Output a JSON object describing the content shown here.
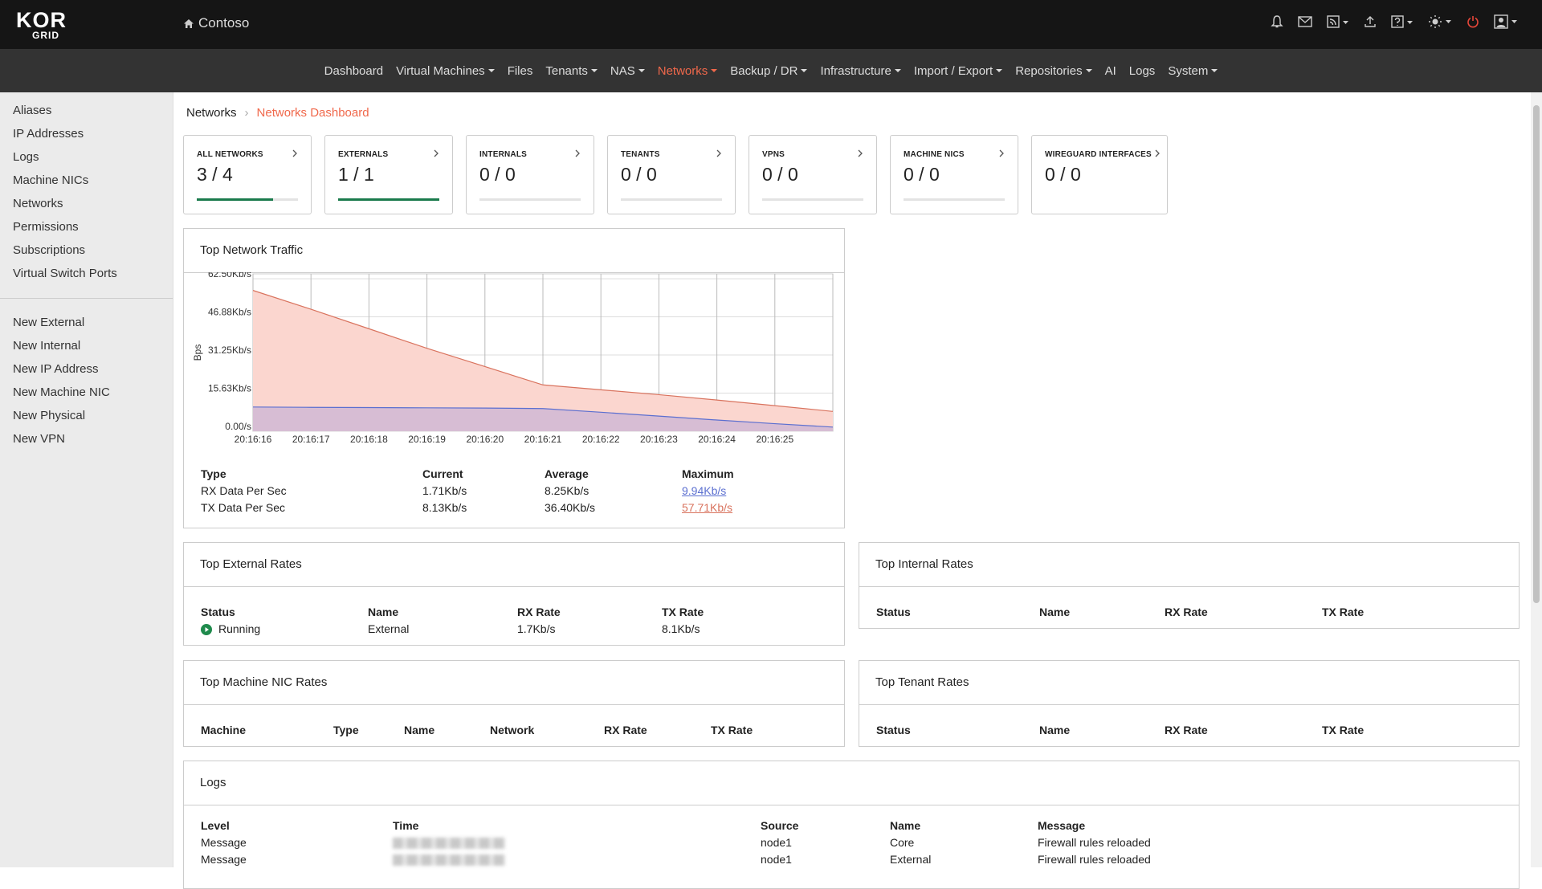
{
  "header": {
    "logo_top": "KOR",
    "logo_bottom": "GRID",
    "brand": "Contoso"
  },
  "nav": {
    "active": 5,
    "items": [
      {
        "label": "Dashboard",
        "dropdown": false
      },
      {
        "label": "Virtual Machines",
        "dropdown": true
      },
      {
        "label": "Files",
        "dropdown": false
      },
      {
        "label": "Tenants",
        "dropdown": true
      },
      {
        "label": "NAS",
        "dropdown": true
      },
      {
        "label": "Networks",
        "dropdown": true
      },
      {
        "label": "Backup / DR",
        "dropdown": true
      },
      {
        "label": "Infrastructure",
        "dropdown": true
      },
      {
        "label": "Import / Export",
        "dropdown": true
      },
      {
        "label": "Repositories",
        "dropdown": true
      },
      {
        "label": "AI",
        "dropdown": false
      },
      {
        "label": "Logs",
        "dropdown": false
      },
      {
        "label": "System",
        "dropdown": true
      }
    ]
  },
  "sidebar": {
    "links": [
      "Aliases",
      "IP Addresses",
      "Logs",
      "Machine NICs",
      "Networks",
      "Permissions",
      "Subscriptions",
      "Virtual Switch Ports"
    ],
    "actions": [
      "New External",
      "New Internal",
      "New IP Address",
      "New Machine NIC",
      "New Physical",
      "New VPN"
    ]
  },
  "breadcrumb": [
    "Networks",
    "Networks Dashboard"
  ],
  "cards": [
    {
      "label": "ALL NETWORKS",
      "value": "3 / 4",
      "progress": 75
    },
    {
      "label": "EXTERNALS",
      "value": "1 / 1",
      "progress": 100
    },
    {
      "label": "INTERNALS",
      "value": "0 / 0",
      "progress": 0
    },
    {
      "label": "TENANTS",
      "value": "0 / 0",
      "progress": 0
    },
    {
      "label": "VPNS",
      "value": "0 / 0",
      "progress": 0
    },
    {
      "label": "MACHINE NICS",
      "value": "0 / 0",
      "progress": 0
    },
    {
      "label": "WIREGUARD INTERFACES",
      "value": "0 / 0"
    }
  ],
  "chart_data": {
    "type": "area",
    "title": "Top Network Traffic",
    "ylabel": "Bps",
    "categories": [
      "20:16:16",
      "20:16:17",
      "20:16:18",
      "20:16:19",
      "20:16:20",
      "20:16:21",
      "20:16:22",
      "20:16:23",
      "20:16:24",
      "20:16:25",
      null
    ],
    "series": [
      {
        "color": "#d9735e",
        "fill": "#fbd6cf",
        "values": [
          57.71,
          50,
          42,
          34,
          26.5,
          19,
          17,
          15,
          12.8,
          10.5,
          8.13
        ]
      },
      {
        "color": "#5b6fd0",
        "fill": "#b9a9d8",
        "values": [
          9.94,
          9.8,
          9.7,
          9.6,
          9.5,
          9.3,
          7.8,
          6.2,
          4.6,
          3.1,
          1.71
        ]
      }
    ],
    "ylim": [
      0,
      64.5
    ],
    "yticks": [
      {
        "value": 0,
        "label": "0.00/s"
      },
      {
        "value": 15.625,
        "label": "15.63Kb/s"
      },
      {
        "value": 31.25,
        "label": "31.25Kb/s"
      },
      {
        "value": 46.875,
        "label": "46.88Kb/s"
      },
      {
        "value": 62.5,
        "label": "62.50Kb/s"
      }
    ],
    "grid": true
  },
  "traffic_table": {
    "headers": [
      "Type",
      "Current",
      "Average",
      "Maximum"
    ],
    "rows": [
      [
        "RX Data Per Sec",
        "1.71Kb/s",
        "8.25Kb/s",
        "9.94Kb/s"
      ],
      [
        "TX Data Per Sec",
        "8.13Kb/s",
        "36.40Kb/s",
        "57.71Kb/s"
      ]
    ]
  },
  "external_rates": {
    "title": "Top External Rates",
    "headers": [
      "Status",
      "Name",
      "RX Rate",
      "TX Rate"
    ],
    "rows": [
      [
        "Running",
        "External",
        "1.7Kb/s",
        "8.1Kb/s"
      ]
    ]
  },
  "internal_rates": {
    "title": "Top Internal Rates",
    "headers": [
      "Status",
      "Name",
      "RX Rate",
      "TX Rate"
    ],
    "rows": []
  },
  "machine_nic_rates": {
    "title": "Top Machine NIC Rates",
    "headers": [
      "Machine",
      "Type",
      "Name",
      "Network",
      "RX Rate",
      "TX Rate"
    ],
    "rows": []
  },
  "tenant_rates": {
    "title": "Top Tenant Rates",
    "headers": [
      "Status",
      "Name",
      "RX Rate",
      "TX Rate"
    ],
    "rows": []
  },
  "logs": {
    "title": "Logs",
    "headers": [
      "Level",
      "Time",
      "Source",
      "Name",
      "Message"
    ],
    "rows": [
      {
        "level": "Message",
        "source": "node1",
        "name": "Core",
        "message": "Firewall rules reloaded"
      },
      {
        "level": "Message",
        "source": "node1",
        "name": "External",
        "message": "Firewall rules reloaded"
      }
    ]
  }
}
